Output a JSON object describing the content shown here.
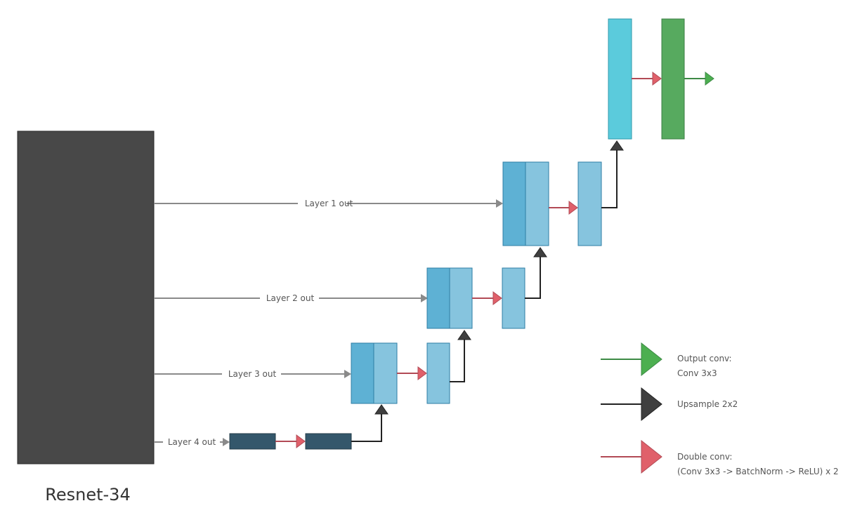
{
  "encoder": {
    "label": "Resnet-34"
  },
  "connections": {
    "layer1": "Layer 1 out",
    "layer2": "Layer 2 out",
    "layer3": "Layer 3 out",
    "layer4": "Layer 4 out"
  },
  "legend": {
    "output_conv": {
      "title": "Output conv:",
      "detail": "Conv 3x3",
      "color": "#4caf50"
    },
    "upsample": {
      "title": "Upsample 2x2",
      "color": "#3f3f3f"
    },
    "double_conv": {
      "title": "Double conv:",
      "detail": "(Conv 3x3 -> BatchNorm -> ReLU) x 2",
      "color": "#e0606a"
    }
  },
  "colors": {
    "encoder": "#484848",
    "bottleneck": "#34576b",
    "skip_block": "#5eb1d4",
    "decoder_block": "#86c4de",
    "final_block": "#5bcbdc",
    "output_block": "#57aa5f"
  }
}
